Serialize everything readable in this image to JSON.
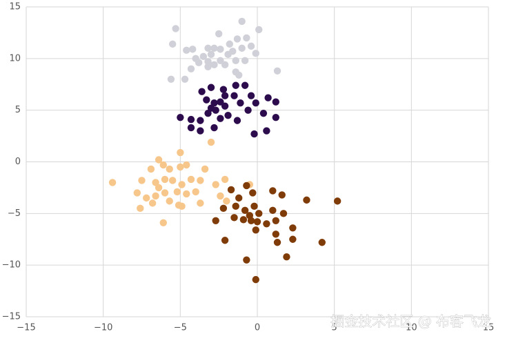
{
  "chart_data": {
    "type": "scatter",
    "xlim": [
      -15,
      15
    ],
    "ylim": [
      -15,
      15
    ],
    "xticks": [
      {
        "value": -15,
        "label": "−15"
      },
      {
        "value": -10,
        "label": "−10"
      },
      {
        "value": -5,
        "label": "−5"
      },
      0,
      5,
      10,
      15
    ],
    "yticks": [
      {
        "value": -15,
        "label": "−15"
      },
      {
        "value": -10,
        "label": "−10"
      },
      {
        "value": -5,
        "label": "−5"
      },
      0,
      5,
      10,
      15
    ],
    "grid": true,
    "watermark": "掘金技术社区 @ 布客飞龙",
    "series": [
      {
        "color": "#d0d0d8",
        "x": [
          -5.3,
          -1.0,
          0.1,
          -2.5,
          -1.3,
          -0.7,
          -5.5,
          -4.6,
          -4.2,
          -3.2,
          -2.8,
          -2.4,
          -1.8,
          -1.6,
          -1.0,
          -0.4,
          -0.1,
          -3.5,
          -3.0,
          -3.2,
          -3.8,
          -4.3,
          -3.2,
          -2.4,
          -2.1,
          -1.4,
          -0.8,
          -1.4,
          -1.2,
          -4.7,
          -5.6,
          1.3,
          -1.9,
          -2.8,
          -4.0
        ],
        "y": [
          12.9,
          13.6,
          12.8,
          12.4,
          11.9,
          12.0,
          11.4,
          10.8,
          10.9,
          11.0,
          11.0,
          10.9,
          11.4,
          10.7,
          11.0,
          11.2,
          10.5,
          10.2,
          10.4,
          9.7,
          9.6,
          9.0,
          9.2,
          9.8,
          9.4,
          9.8,
          9.8,
          8.7,
          8.4,
          8.0,
          8.0,
          8.8,
          10.4,
          9.4,
          10.0
        ]
      },
      {
        "color": "#2d0c4e",
        "x": [
          -3.6,
          -3.0,
          -2.2,
          -1.4,
          -0.8,
          -3.3,
          -2.8,
          -2.4,
          -2.1,
          -1.5,
          -1.1,
          -0.4,
          -0.1,
          0.7,
          1.2,
          -5.0,
          -4.3,
          -3.7,
          -3.2,
          -2.7,
          -2.4,
          -1.9,
          -1.3,
          -0.6,
          0.4,
          1.2,
          -4.3,
          -3.7,
          -2.8,
          -0.2,
          0.6,
          -3.0,
          -2.1
        ],
        "y": [
          6.8,
          7.2,
          7.0,
          7.4,
          7.4,
          6.0,
          5.7,
          5.8,
          5.4,
          6.4,
          5.7,
          6.4,
          5.7,
          6.2,
          5.8,
          4.3,
          4.1,
          4.0,
          4.7,
          5.0,
          4.2,
          4.5,
          4.0,
          5.0,
          4.7,
          4.3,
          3.3,
          3.0,
          3.3,
          2.7,
          3.0,
          5.2,
          6.4
        ]
      },
      {
        "color": "#f7c68a",
        "x": [
          -5.0,
          -6.4,
          -6.9,
          -6.1,
          -5.7,
          -5.0,
          -4.6,
          -3.4,
          -9.4,
          -7.5,
          -6.6,
          -6.0,
          -5.5,
          -4.9,
          -4.3,
          -3.7,
          -2.7,
          -2.1,
          -7.8,
          -7.2,
          -6.6,
          -6.0,
          -5.2,
          -4.6,
          -4.0,
          -7.6,
          -6.8,
          -5.7,
          -5.1,
          -4.9,
          -3.7,
          -2.4,
          -2.0,
          -6.1,
          -3.0,
          -0.5,
          -6.4
        ],
        "y": [
          0.9,
          0.2,
          -0.7,
          -0.3,
          -0.7,
          -0.5,
          -0.3,
          -0.7,
          -2.0,
          -1.8,
          -2.0,
          -1.7,
          -1.8,
          -2.2,
          -1.7,
          -1.8,
          -2.2,
          -1.7,
          -3.0,
          -3.5,
          -3.3,
          -3.0,
          -2.9,
          -3.1,
          -2.9,
          -4.5,
          -4.0,
          -3.8,
          -4.2,
          -4.3,
          -4.0,
          -3.3,
          -3.8,
          -5.9,
          1.9,
          -2.2,
          -2.5
        ]
      },
      {
        "color": "#7f3b08",
        "x": [
          -1.7,
          -0.7,
          -1.2,
          -0.3,
          1.0,
          1.6,
          3.2,
          5.2,
          -2.2,
          -1.4,
          -0.8,
          -0.2,
          0.1,
          1.0,
          1.7,
          -2.7,
          -1.5,
          -0.9,
          -0.4,
          0.0,
          1.2,
          2.3,
          -0.1,
          1.2,
          2.3,
          -2.1,
          1.3,
          4.2,
          1.9,
          -0.7,
          -0.1,
          -0.5,
          0.6
        ],
        "y": [
          -2.7,
          -2.3,
          -3.5,
          -3.0,
          -2.8,
          -3.2,
          -3.7,
          -3.8,
          -4.5,
          -4.3,
          -4.7,
          -4.3,
          -5.0,
          -4.7,
          -5.0,
          -5.7,
          -5.4,
          -5.6,
          -5.7,
          -5.8,
          -5.7,
          -6.4,
          -6.6,
          -7.0,
          -7.5,
          -7.6,
          -7.8,
          -7.8,
          -9.2,
          -9.5,
          -11.4,
          -5.2,
          -6.0
        ]
      }
    ]
  }
}
